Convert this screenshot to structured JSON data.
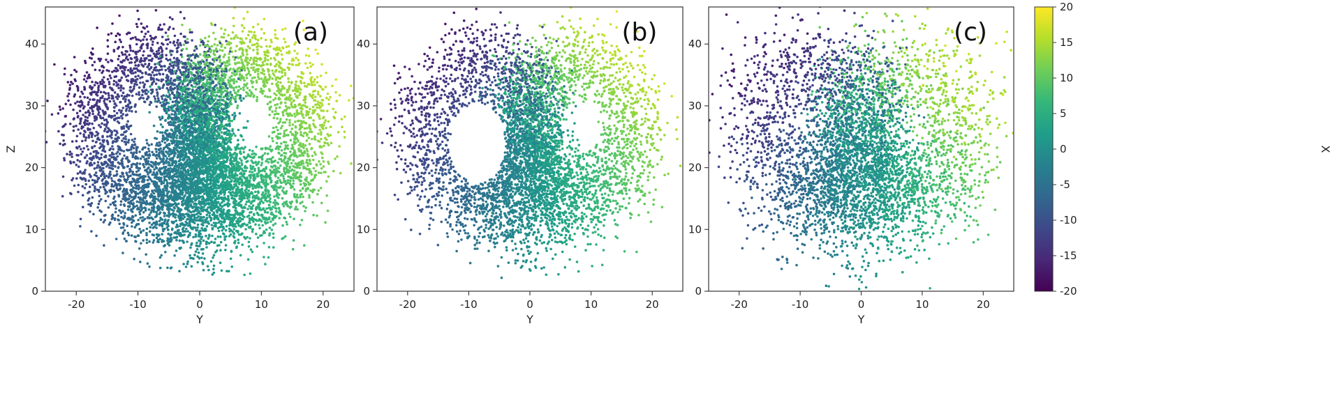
{
  "chart_data": [
    {
      "type": "scatter",
      "panel_label": "(a)",
      "xlabel": "Y",
      "ylabel": "Z",
      "xlim": [
        -25,
        25
      ],
      "ylim": [
        0,
        46
      ],
      "xticks": [
        -20,
        -10,
        0,
        10,
        20
      ],
      "yticks": [
        0,
        10,
        20,
        30,
        40
      ],
      "color_by": "X",
      "spread": 0.35,
      "wing_fill": 0.0,
      "density": 1.0
    },
    {
      "type": "scatter",
      "panel_label": "(b)",
      "xlabel": "Y",
      "ylabel": "",
      "xlim": [
        -25,
        25
      ],
      "ylim": [
        0,
        46
      ],
      "xticks": [
        -20,
        -10,
        0,
        10,
        20
      ],
      "yticks": [
        0,
        10,
        20,
        30,
        40
      ],
      "color_by": "X",
      "spread": 0.55,
      "wing_fill": 0.0,
      "left_hole": true,
      "density": 0.7
    },
    {
      "type": "scatter",
      "panel_label": "(c)",
      "xlabel": "Y",
      "ylabel": "",
      "xlim": [
        -25,
        25
      ],
      "ylim": [
        0,
        46
      ],
      "xticks": [
        -20,
        -10,
        0,
        10,
        20
      ],
      "yticks": [
        0,
        10,
        20,
        30,
        40
      ],
      "color_by": "X",
      "spread": 2.2,
      "wing_fill": 1.0,
      "density": 0.6
    }
  ],
  "colorbar": {
    "label": "X",
    "range": [
      -20,
      20
    ],
    "ticks": [
      -20,
      -15,
      -10,
      -5,
      0,
      5,
      10,
      15,
      20
    ],
    "colormap": "viridis",
    "stops": [
      "#440154",
      "#482878",
      "#3e4989",
      "#31688e",
      "#26828e",
      "#1f9e89",
      "#35b779",
      "#6ece58",
      "#b5de2b",
      "#fde725"
    ]
  }
}
